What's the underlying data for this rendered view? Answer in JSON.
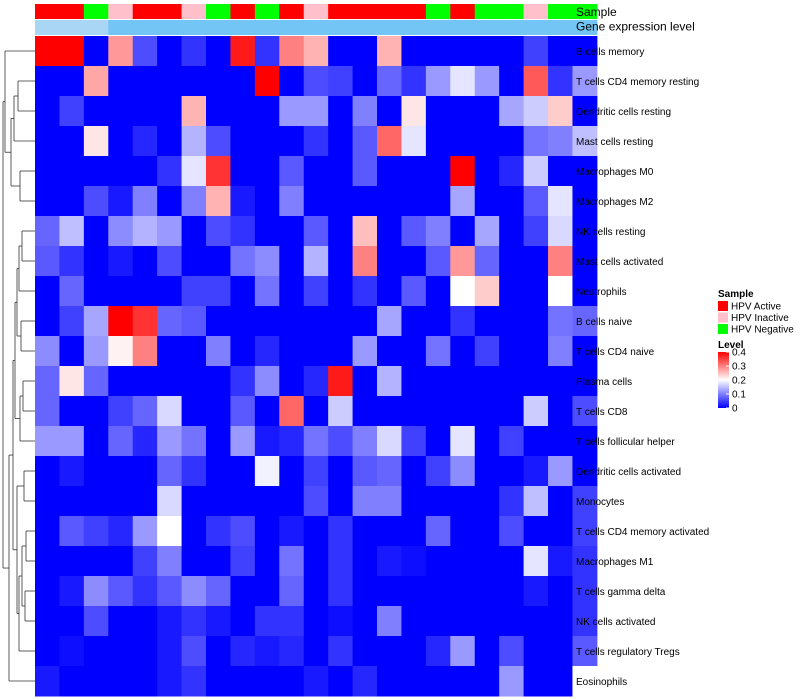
{
  "chart_data": {
    "type": "heatmap",
    "annotation_labels": [
      "Sample",
      "Gene expression level"
    ],
    "columns": [
      {
        "sample": "HPV Active",
        "gene_level": "low"
      },
      {
        "sample": "HPV Active",
        "gene_level": "low"
      },
      {
        "sample": "HPV Negative",
        "gene_level": "low"
      },
      {
        "sample": "HPV Inactive",
        "gene_level": "high"
      },
      {
        "sample": "HPV Active",
        "gene_level": "high"
      },
      {
        "sample": "HPV Active",
        "gene_level": "high"
      },
      {
        "sample": "HPV Inactive",
        "gene_level": "high"
      },
      {
        "sample": "HPV Negative",
        "gene_level": "high"
      },
      {
        "sample": "HPV Active",
        "gene_level": "high"
      },
      {
        "sample": "HPV Negative",
        "gene_level": "high"
      },
      {
        "sample": "HPV Active",
        "gene_level": "high"
      },
      {
        "sample": "HPV Inactive",
        "gene_level": "high"
      },
      {
        "sample": "HPV Active",
        "gene_level": "high"
      },
      {
        "sample": "HPV Active",
        "gene_level": "high"
      },
      {
        "sample": "HPV Active",
        "gene_level": "high"
      },
      {
        "sample": "HPV Active",
        "gene_level": "high"
      },
      {
        "sample": "HPV Negative",
        "gene_level": "high"
      },
      {
        "sample": "HPV Active",
        "gene_level": "high"
      },
      {
        "sample": "HPV Negative",
        "gene_level": "high"
      },
      {
        "sample": "HPV Negative",
        "gene_level": "high"
      },
      {
        "sample": "HPV Inactive",
        "gene_level": "high"
      },
      {
        "sample": "HPV Negative",
        "gene_level": "high"
      },
      {
        "sample": "HPV Negative",
        "gene_level": "high"
      }
    ],
    "rows": [
      "B cells memory",
      "T cells CD4 memory resting",
      "Dendritic cells resting",
      "Mast cells resting",
      "Macrophages M0",
      "Macrophages M2",
      "NK cells resting",
      "Mast cells activated",
      "Neutrophils",
      "B cells naive",
      "T cells CD4 naive",
      "Plasma cells",
      "T cells CD8",
      "T cells follicular helper",
      "Dendritic cells activated",
      "Monocytes",
      "T cells CD4 memory activated",
      "Macrophages M1",
      "T cells gamma delta",
      "NK cells activated",
      "T cells regulatory  Tregs",
      "Eosinophils"
    ],
    "values": [
      [
        0.4,
        0.4,
        0.0,
        0.28,
        0.06,
        0.0,
        0.04,
        0.0,
        0.38,
        0.04,
        0.3,
        0.26,
        0.0,
        0.0,
        0.26,
        0.0,
        0.0,
        0.0,
        0.0,
        0.0,
        0.05,
        0.0,
        0.0
      ],
      [
        0.0,
        0.0,
        0.27,
        0.0,
        0.0,
        0.0,
        0.0,
        0.0,
        0.0,
        0.4,
        0.0,
        0.06,
        0.05,
        0.0,
        0.08,
        0.04,
        0.12,
        0.18,
        0.12,
        0.0,
        0.33,
        0.04,
        0.12
      ],
      [
        0.0,
        0.05,
        0.0,
        0.0,
        0.0,
        0.0,
        0.26,
        0.0,
        0.0,
        0.0,
        0.12,
        0.12,
        0.0,
        0.1,
        0.0,
        0.22,
        0.0,
        0.0,
        0.0,
        0.13,
        0.16,
        0.24,
        0.0
      ],
      [
        0.0,
        0.0,
        0.22,
        0.0,
        0.03,
        0.0,
        0.14,
        0.06,
        0.0,
        0.0,
        0.0,
        0.04,
        0.0,
        0.07,
        0.32,
        0.18,
        0.0,
        0.0,
        0.0,
        0.0,
        0.09,
        0.1,
        0.15
      ],
      [
        0.0,
        0.0,
        0.0,
        0.0,
        0.0,
        0.04,
        0.18,
        0.36,
        0.0,
        0.0,
        0.07,
        0.0,
        0.0,
        0.07,
        0.0,
        0.0,
        0.0,
        0.4,
        0.0,
        0.03,
        0.16,
        0.0,
        0.0
      ],
      [
        0.0,
        0.0,
        0.06,
        0.02,
        0.1,
        0.0,
        0.1,
        0.26,
        0.02,
        0.0,
        0.1,
        0.0,
        0.0,
        0.0,
        0.0,
        0.0,
        0.0,
        0.13,
        0.0,
        0.0,
        0.07,
        0.18,
        0.0
      ],
      [
        0.08,
        0.15,
        0.0,
        0.11,
        0.14,
        0.12,
        0.0,
        0.06,
        0.04,
        0.0,
        0.0,
        0.07,
        0.0,
        0.25,
        0.0,
        0.07,
        0.1,
        0.0,
        0.13,
        0.0,
        0.05,
        0.17,
        0.0
      ],
      [
        0.07,
        0.04,
        0.0,
        0.02,
        0.0,
        0.06,
        0.0,
        0.0,
        0.09,
        0.11,
        0.0,
        0.14,
        0.0,
        0.3,
        0.0,
        0.0,
        0.07,
        0.28,
        0.08,
        0.0,
        0.0,
        0.3,
        0.0
      ],
      [
        0.0,
        0.08,
        0.0,
        0.0,
        0.0,
        0.0,
        0.05,
        0.05,
        0.0,
        0.09,
        0.0,
        0.05,
        0.0,
        0.04,
        0.0,
        0.07,
        0.0,
        0.2,
        0.24,
        0.0,
        0.0,
        0.2,
        0.0
      ],
      [
        0.0,
        0.05,
        0.13,
        0.4,
        0.36,
        0.08,
        0.07,
        0.0,
        0.0,
        0.0,
        0.0,
        0.0,
        0.0,
        0.0,
        0.13,
        0.0,
        0.0,
        0.04,
        0.0,
        0.0,
        0.0,
        0.09,
        0.08
      ],
      [
        0.11,
        0.0,
        0.12,
        0.21,
        0.3,
        0.0,
        0.0,
        0.1,
        0.0,
        0.03,
        0.0,
        0.0,
        0.0,
        0.12,
        0.0,
        0.0,
        0.09,
        0.0,
        0.05,
        0.0,
        0.0,
        0.1,
        0.0
      ],
      [
        0.08,
        0.22,
        0.08,
        0.0,
        0.0,
        0.0,
        0.0,
        0.0,
        0.04,
        0.11,
        0.0,
        0.03,
        0.38,
        0.0,
        0.14,
        0.0,
        0.0,
        0.0,
        0.0,
        0.0,
        0.0,
        0.0,
        0.0
      ],
      [
        0.08,
        0.0,
        0.0,
        0.05,
        0.08,
        0.17,
        0.0,
        0.0,
        0.07,
        0.0,
        0.32,
        0.0,
        0.16,
        0.0,
        0.0,
        0.0,
        0.0,
        0.0,
        0.0,
        0.0,
        0.16,
        0.0,
        0.06
      ],
      [
        0.12,
        0.12,
        0.0,
        0.08,
        0.03,
        0.12,
        0.09,
        0.0,
        0.12,
        0.02,
        0.03,
        0.09,
        0.06,
        0.1,
        0.17,
        0.05,
        0.0,
        0.18,
        0.0,
        0.05,
        0.0,
        0.0,
        0.0
      ],
      [
        0.0,
        0.02,
        0.0,
        0.0,
        0.0,
        0.08,
        0.04,
        0.0,
        0.0,
        0.19,
        0.0,
        0.05,
        0.0,
        0.07,
        0.08,
        0.0,
        0.05,
        0.11,
        0.0,
        0.0,
        0.02,
        0.12,
        0.0
      ],
      [
        0.0,
        0.0,
        0.0,
        0.0,
        0.0,
        0.17,
        0.0,
        0.0,
        0.0,
        0.0,
        0.0,
        0.06,
        0.0,
        0.1,
        0.1,
        0.0,
        0.0,
        0.0,
        0.0,
        0.04,
        0.15,
        0.0,
        0.05
      ],
      [
        0.0,
        0.07,
        0.05,
        0.03,
        0.12,
        0.2,
        0.0,
        0.04,
        0.06,
        0.0,
        0.02,
        0.0,
        0.04,
        0.0,
        0.0,
        0.0,
        0.08,
        0.0,
        0.0,
        0.06,
        0.0,
        0.0,
        0.05
      ],
      [
        0.0,
        0.0,
        0.0,
        0.0,
        0.05,
        0.1,
        0.0,
        0.0,
        0.05,
        0.0,
        0.09,
        0.0,
        0.04,
        0.0,
        0.02,
        0.01,
        0.0,
        0.0,
        0.0,
        0.0,
        0.18,
        0.02,
        0.04
      ],
      [
        0.0,
        0.02,
        0.11,
        0.07,
        0.04,
        0.07,
        0.11,
        0.08,
        0.0,
        0.0,
        0.08,
        0.0,
        0.04,
        0.0,
        0.0,
        0.0,
        0.0,
        0.0,
        0.0,
        0.0,
        0.02,
        0.0,
        0.04
      ],
      [
        0.0,
        0.0,
        0.06,
        0.0,
        0.0,
        0.02,
        0.04,
        0.02,
        0.0,
        0.04,
        0.04,
        0.0,
        0.01,
        0.0,
        0.1,
        0.0,
        0.0,
        0.0,
        0.0,
        0.0,
        0.0,
        0.0,
        0.04
      ],
      [
        0.0,
        0.01,
        0.0,
        0.0,
        0.0,
        0.02,
        0.06,
        0.0,
        0.03,
        0.02,
        0.03,
        0.0,
        0.04,
        0.0,
        0.0,
        0.0,
        0.03,
        0.12,
        0.0,
        0.06,
        0.0,
        0.0,
        0.07
      ],
      [
        0.02,
        0.0,
        0.0,
        0.0,
        0.0,
        0.02,
        0.04,
        0.0,
        0.0,
        0.0,
        0.0,
        0.02,
        0.0,
        0.03,
        0.0,
        0.0,
        0.0,
        0.0,
        0.0,
        0.12,
        0.0,
        0.0,
        0.2
      ]
    ],
    "legend_sample": {
      "title": "Sample",
      "entries": [
        {
          "label": "HPV Active",
          "color": "#ff0000"
        },
        {
          "label": "HPV Inactive",
          "color": "#ffc0cb"
        },
        {
          "label": "HPV Negative",
          "color": "#00ff00"
        }
      ]
    },
    "legend_level": {
      "title": "Level",
      "ticks": [
        "0.4",
        "0.3",
        "0.2",
        "0.1",
        "0"
      ],
      "range": [
        0,
        0.4
      ]
    },
    "gene_level_colors": {
      "low": "#a9d6f5",
      "high": "#72c5f5"
    },
    "color_scale": {
      "low": "#0000ff",
      "mid": "#ffffff",
      "high": "#ff0000",
      "mid_value": 0.2
    }
  }
}
